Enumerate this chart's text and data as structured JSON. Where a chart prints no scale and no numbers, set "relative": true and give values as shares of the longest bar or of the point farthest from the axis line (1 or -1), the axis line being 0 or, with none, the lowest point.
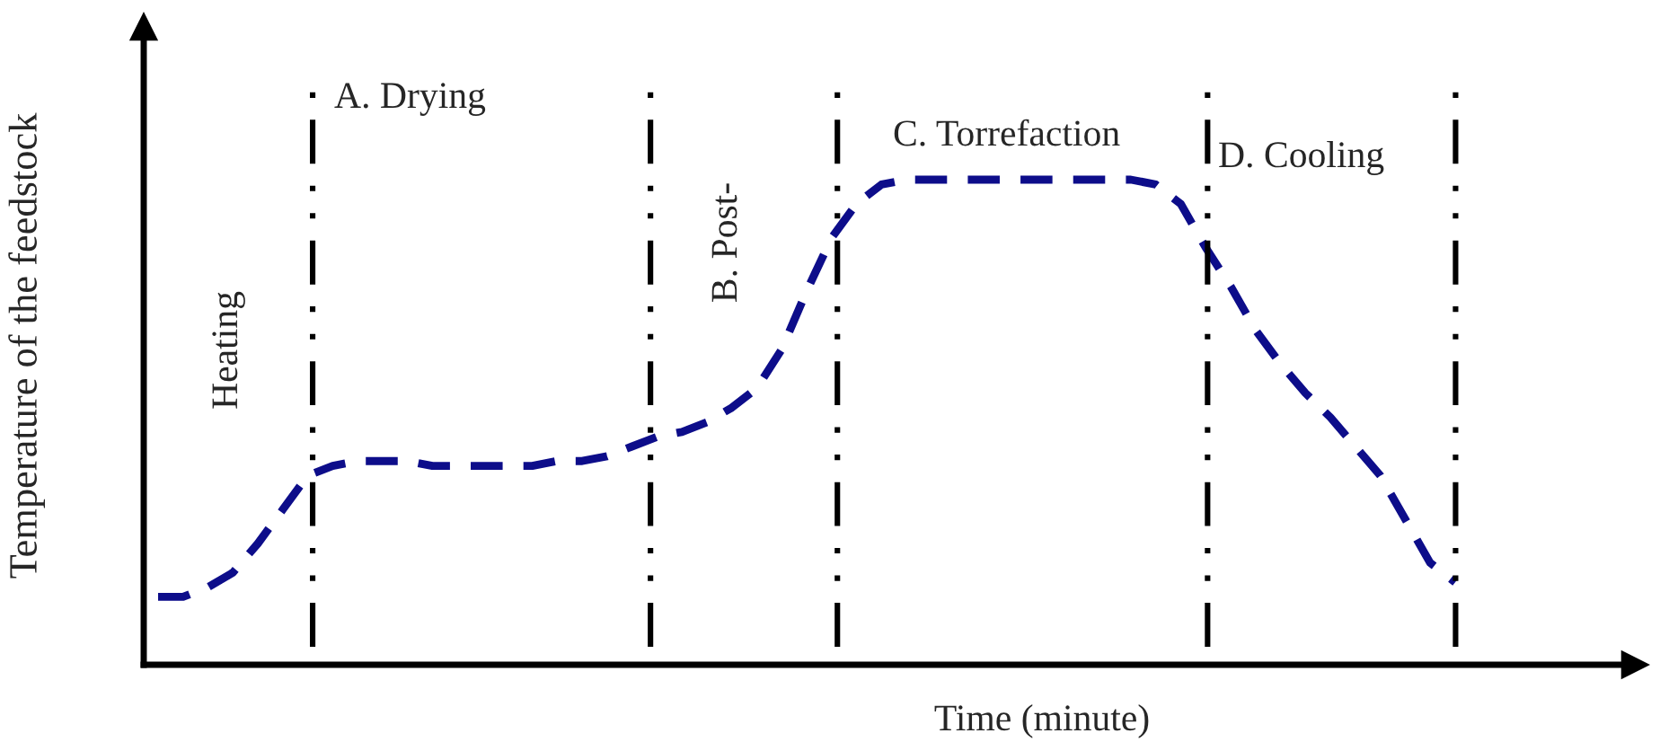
{
  "chart_data": {
    "type": "line",
    "relative": true,
    "xlabel": "Time (minute)",
    "ylabel": "Temperature of the feedstock",
    "categories": [
      null,
      null,
      null,
      null,
      null,
      null,
      null,
      null,
      null,
      null,
      null,
      null,
      null,
      null,
      null,
      null,
      null,
      null,
      null,
      null,
      null,
      null,
      null,
      null,
      null,
      null,
      null,
      null,
      null,
      null,
      null,
      null,
      null,
      null,
      null,
      null,
      null,
      null,
      null,
      null,
      null,
      null,
      null,
      null,
      null,
      null,
      null,
      null,
      null,
      null,
      null,
      null,
      null
    ],
    "series": [
      {
        "color": "#0d0d8a",
        "values": [
          0.14,
          0.14,
          0.16,
          0.19,
          0.25,
          0.32,
          0.39,
          0.41,
          0.42,
          0.42,
          0.42,
          0.41,
          0.41,
          0.41,
          0.41,
          0.41,
          0.42,
          0.42,
          0.43,
          0.45,
          0.47,
          0.48,
          0.5,
          0.53,
          0.57,
          0.65,
          0.77,
          0.88,
          0.95,
          0.99,
          1.0,
          1.0,
          1.0,
          1.0,
          1.0,
          1.0,
          1.0,
          1.0,
          1.0,
          1.0,
          0.99,
          0.95,
          0.86,
          0.78,
          0.69,
          0.62,
          0.56,
          0.51,
          0.45,
          0.39,
          0.3,
          0.21,
          0.17
        ]
      }
    ],
    "line_style": "dashed",
    "marker": "none",
    "legend": false,
    "grid": "x",
    "annotations": [
      "Heating",
      "A. Drying",
      "B. Post-",
      "C. Torrefaction",
      "D. Cooling"
    ]
  }
}
